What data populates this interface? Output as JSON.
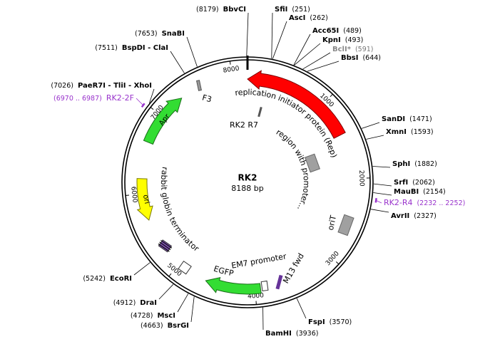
{
  "map": {
    "name": "RK2",
    "length": "8188 bp",
    "ruler": [
      "1000",
      "2000",
      "3000",
      "4000",
      "5000",
      "6000",
      "7000",
      "8000"
    ]
  },
  "sites": [
    {
      "name": "BbvCI",
      "position": "(8179)"
    },
    {
      "name": "SfiI",
      "position": "(251)"
    },
    {
      "name": "AscI",
      "position": "(262)"
    },
    {
      "name": "Acc65I",
      "position": "(489)"
    },
    {
      "name": "KpnI",
      "position": "(493)"
    },
    {
      "name": "BclI*",
      "position": "(591)"
    },
    {
      "name": "BbsI",
      "position": "(644)"
    },
    {
      "name": "SanDI",
      "position": "(1471)"
    },
    {
      "name": "XmnI",
      "position": "(1593)"
    },
    {
      "name": "SphI",
      "position": "(1882)"
    },
    {
      "name": "SrfI",
      "position": "(2062)"
    },
    {
      "name": "MauBI",
      "position": "(2154)"
    },
    {
      "name": "AvrII",
      "position": "(2327)"
    },
    {
      "name": "FspI",
      "position": "(3570)"
    },
    {
      "name": "BamHI",
      "position": "(3936)"
    },
    {
      "name": "BsrGI",
      "position": "(4663)"
    },
    {
      "name": "MscI",
      "position": "(4728)"
    },
    {
      "name": "DraI",
      "position": "(4912)"
    },
    {
      "name": "EcoRI",
      "position": "(5242)"
    },
    {
      "name": "PaeR7I - TliI - XhoI",
      "position": "(7026)"
    },
    {
      "name": "BspDI - ClaI",
      "position": "(7511)"
    },
    {
      "name": "SnaBI",
      "position": "(7653)"
    }
  ],
  "primers": [
    {
      "name": "RK2-2F",
      "range": "(6970 .. 6987)"
    },
    {
      "name": "RK2-R4",
      "range": "(2232 .. 2252)"
    }
  ],
  "features": [
    {
      "label": "replication initiator protein (Rep)"
    },
    {
      "label": "Apr"
    },
    {
      "label": "ori"
    },
    {
      "label": "rabbit globin terminator"
    },
    {
      "label": "EGFP"
    },
    {
      "label": "EM7 promoter"
    },
    {
      "label": "M13 fwd"
    },
    {
      "label": "oriT"
    },
    {
      "label": "F3"
    },
    {
      "label": "RK2 R7"
    },
    {
      "label": "region with promoter..."
    }
  ]
}
